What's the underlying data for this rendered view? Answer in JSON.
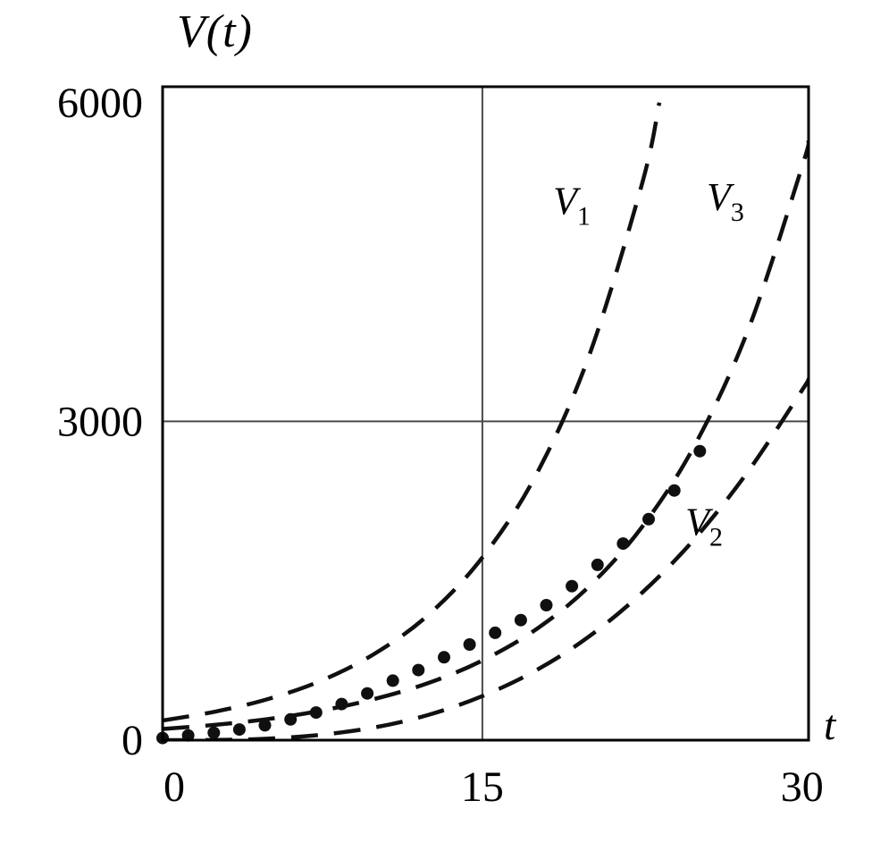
{
  "chart": {
    "ylabel": "V(t)",
    "xlabel": "t"
  },
  "chart_data": {
    "type": "line",
    "title": "V(t)",
    "xlabel": "t",
    "ylabel": "V(t)",
    "x_range": [
      0,
      30.3
    ],
    "y_range": [
      0,
      6150
    ],
    "x_ticks": [
      0,
      15,
      30
    ],
    "y_ticks": [
      0,
      3000,
      6000
    ],
    "gridlines": {
      "x": [
        15
      ],
      "y": [
        3000
      ]
    },
    "grid_color": "#4a4a4a",
    "line_color": "#101010",
    "series": [
      {
        "name": "V1",
        "label": {
          "base": "V",
          "sub": "1",
          "x": 19.2,
          "y": 4950
        },
        "dash": [
          30,
          18
        ],
        "x": [
          0,
          2.5,
          5,
          7.5,
          10,
          12.5,
          15,
          17.5,
          20,
          22.5,
          23.3
        ],
        "y": [
          185,
          270,
          390,
          565,
          820,
          1185,
          1720,
          2490,
          3615,
          5245,
          6000
        ]
      },
      {
        "name": "V2",
        "label": {
          "base": "V",
          "sub": "2",
          "x": 25.4,
          "y": 1930
        },
        "dash": [
          30,
          18
        ],
        "x": [
          0,
          2.5,
          5,
          7.5,
          10,
          12.5,
          15,
          17.5,
          20,
          22.5,
          25,
          27.5,
          30,
          30.3
        ],
        "y": [
          0,
          2,
          15,
          52,
          122,
          240,
          415,
          655,
          975,
          1390,
          1905,
          2540,
          3295,
          3400
        ]
      },
      {
        "name": "V3",
        "label": {
          "base": "V",
          "sub": "3",
          "x": 26.4,
          "y": 4990
        },
        "dash": [
          30,
          18
        ],
        "x": [
          0,
          2.5,
          5,
          7.5,
          10,
          12.5,
          15,
          17.5,
          20,
          22.5,
          25,
          27.5,
          30,
          30.3
        ],
        "y": [
          105,
          145,
          200,
          280,
          390,
          540,
          750,
          1040,
          1445,
          2010,
          2790,
          3880,
          5400,
          5640
        ]
      }
    ],
    "points": {
      "name": "observed-data",
      "radius": 7,
      "x": [
        0,
        1.2,
        2.4,
        3.6,
        4.8,
        6,
        7.2,
        8.4,
        9.6,
        10.8,
        12,
        13.2,
        14.4,
        15.6,
        16.8,
        18,
        19.2,
        20.4,
        21.6,
        22.8,
        24,
        25.2
      ],
      "y": [
        20,
        45,
        70,
        100,
        140,
        195,
        260,
        340,
        440,
        560,
        660,
        780,
        900,
        1010,
        1130,
        1270,
        1450,
        1650,
        1850,
        2080,
        2350,
        2720
      ]
    }
  }
}
